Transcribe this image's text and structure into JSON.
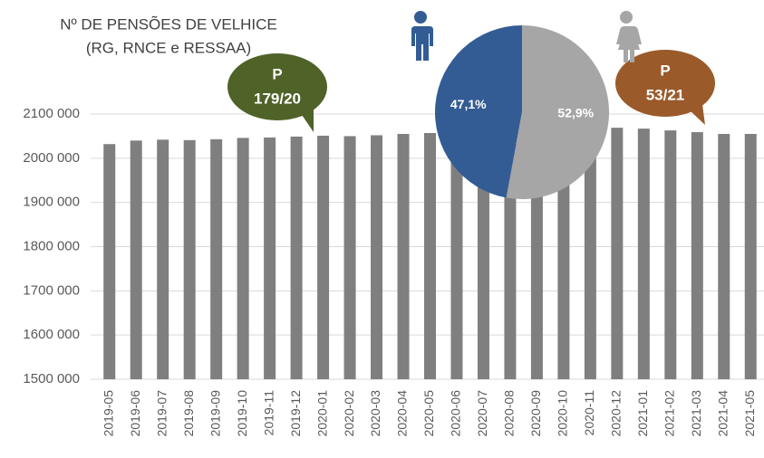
{
  "chart_data": [
    {
      "type": "bar",
      "title_lines": [
        "Nº DE PENSÕES DE VELHICE",
        "(RG, RNCE e RESSAA)"
      ],
      "categories": [
        "2019-05",
        "2019-06",
        "2019-07",
        "2019-08",
        "2019-09",
        "2019-10",
        "2019-11",
        "2019-12",
        "2020-01",
        "2020-02",
        "2020-03",
        "2020-04",
        "2020-05",
        "2020-06",
        "2020-07",
        "2020-08",
        "2020-09",
        "2020-10",
        "2020-11",
        "2020-12",
        "2021-01",
        "2021-02",
        "2021-03",
        "2021-04",
        "2021-05"
      ],
      "values": [
        2032000,
        2040000,
        2042000,
        2041000,
        2043000,
        2046000,
        2047000,
        2049000,
        2051000,
        2050000,
        2052000,
        2055000,
        2057000,
        2059000,
        2063000,
        2063000,
        2065000,
        2065000,
        2067000,
        2069000,
        2067000,
        2063000,
        2059000,
        2055000,
        2055000
      ],
      "color": "#7f7f7f",
      "ylim": [
        1500000,
        2100000
      ],
      "yticks": [
        {
          "value": 1500000,
          "label": "1500 000"
        },
        {
          "value": 1600000,
          "label": "1600 000"
        },
        {
          "value": 1700000,
          "label": "1700 000"
        },
        {
          "value": 1800000,
          "label": "1800 000"
        },
        {
          "value": 1900000,
          "label": "1900 000"
        },
        {
          "value": 2000000,
          "label": "2000 000"
        },
        {
          "value": 2100000,
          "label": "2100 000"
        }
      ],
      "grid": true,
      "annotations": [
        {
          "lines": [
            "P",
            "179/20"
          ],
          "color": "#4f6228"
        },
        {
          "lines": [
            "P",
            "53/21"
          ],
          "color": "#9a5a2a"
        }
      ]
    },
    {
      "type": "pie",
      "values": [
        47.1,
        52.9
      ],
      "value_labels": [
        "47,1%",
        "52,9%"
      ],
      "colors": [
        "#335c94",
        "#a6a6a6"
      ]
    }
  ]
}
